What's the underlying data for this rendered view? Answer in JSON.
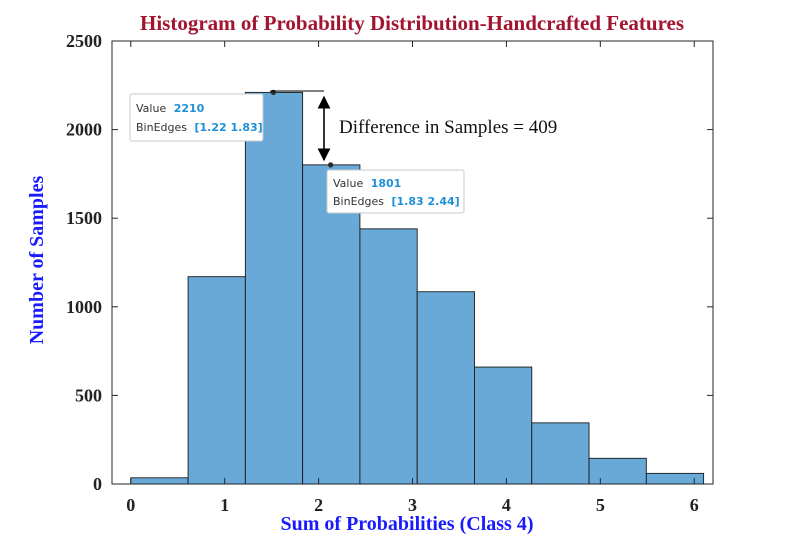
{
  "chart_data": {
    "type": "bar",
    "title": "Histogram of Probability Distribution-Handcrafted Features",
    "xlabel": "Sum of Probabilities (Class 4)",
    "ylabel": "Number of Samples",
    "bin_edges": [
      0,
      0.61,
      1.22,
      1.83,
      2.44,
      3.05,
      3.66,
      4.27,
      4.88,
      5.49,
      6.1
    ],
    "values": [
      35,
      1170,
      2210,
      1801,
      1440,
      1085,
      660,
      345,
      145,
      60
    ],
    "xlim": [
      -0.2,
      6.2
    ],
    "ylim": [
      0,
      2500
    ],
    "xticks": [
      "0",
      "1",
      "2",
      "3",
      "4",
      "5",
      "6"
    ],
    "yticks": [
      "0",
      "500",
      "1000",
      "1500",
      "2000",
      "2500"
    ],
    "grid": false,
    "bar_color": "#68a9d7",
    "annotation": "Difference in Samples = 409",
    "datatips": [
      {
        "value_label": "Value",
        "value": "2210",
        "edges_label": "BinEdges",
        "edges": "[1.22 1.83]"
      },
      {
        "value_label": "Value",
        "value": "1801",
        "edges_label": "BinEdges",
        "edges": "[1.83 2.44]"
      }
    ]
  }
}
